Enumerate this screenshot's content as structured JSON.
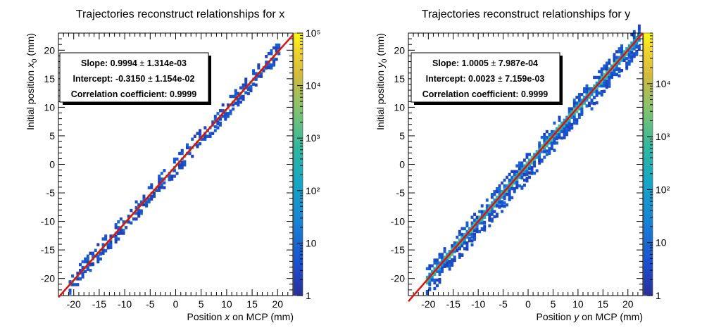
{
  "chart_data": [
    {
      "type": "heatmap",
      "title": "Trajectories reconstruct relationships for x",
      "xlabel_pre": "Position ",
      "xlabel_var": "x",
      "xlabel_post": " on MCP (mm)",
      "ylabel_pre": "Initial position ",
      "ylabel_var": "x",
      "ylabel_sub": "0",
      "ylabel_post": " (mm)",
      "xlim": [
        -23,
        23
      ],
      "ylim": [
        -23,
        23
      ],
      "xticks": [
        -20,
        -15,
        -10,
        -5,
        0,
        5,
        10,
        15,
        20
      ],
      "yticks": [
        -20,
        -15,
        -10,
        -5,
        0,
        5,
        10,
        15,
        20
      ],
      "zscale": "log",
      "zlim": [
        1,
        100000
      ],
      "zticks": [
        "1",
        "10",
        "10²",
        "10³",
        "10⁴",
        "10⁵"
      ],
      "zvalues": [
        1,
        10,
        100,
        1000,
        10000,
        100000
      ],
      "fit": {
        "slope": 0.9994,
        "intercept": -0.315,
        "color": "#e01010"
      },
      "band": {
        "xmin": -21,
        "xmax": 20,
        "width": 0.9,
        "scatter": 0.8,
        "seed": 7
      },
      "stats": {
        "slope_label": "Slope: 0.9994 ",
        "slope_pm": "±",
        "slope_err": " 1.314e-03",
        "intercept_label": "Intercept: -0.3150 ",
        "intercept_pm": "±",
        "intercept_err": " 1.154e-02",
        "correlation": "Correlation coefficient: 0.9999"
      }
    },
    {
      "type": "heatmap",
      "title": "Trajectories reconstruct relationships for y",
      "xlabel_pre": "Position ",
      "xlabel_var": "y",
      "xlabel_post": " on MCP (mm)",
      "ylabel_pre": "Initial position ",
      "ylabel_var": "y",
      "ylabel_sub": "0",
      "ylabel_post": " (mm)",
      "xlim": [
        -24,
        23
      ],
      "ylim": [
        -23,
        23
      ],
      "xticks": [
        -20,
        -15,
        -10,
        -5,
        0,
        5,
        10,
        15,
        20
      ],
      "yticks": [
        -20,
        -15,
        -10,
        -5,
        0,
        5,
        10,
        15,
        20
      ],
      "zscale": "log",
      "zlim": [
        1,
        90000
      ],
      "zticks": [
        "1",
        "10",
        "10²",
        "10³",
        "10⁴"
      ],
      "zvalues": [
        1,
        10,
        100,
        1000,
        10000
      ],
      "fit": {
        "slope": 1.0005,
        "intercept": 0.0023,
        "color": "#e01010"
      },
      "band": {
        "xmin": -20.5,
        "xmax": 22,
        "width": 1.6,
        "scatter": 2.2,
        "seed": 13
      },
      "stats": {
        "slope_label": "Slope: 1.0005 ",
        "slope_pm": "±",
        "slope_err": " 7.987e-04",
        "intercept_label": "Intercept: 0.0023 ",
        "intercept_pm": "±",
        "intercept_err": " 7.159e-03",
        "correlation": "Correlation coefficient: 0.9999"
      }
    }
  ]
}
